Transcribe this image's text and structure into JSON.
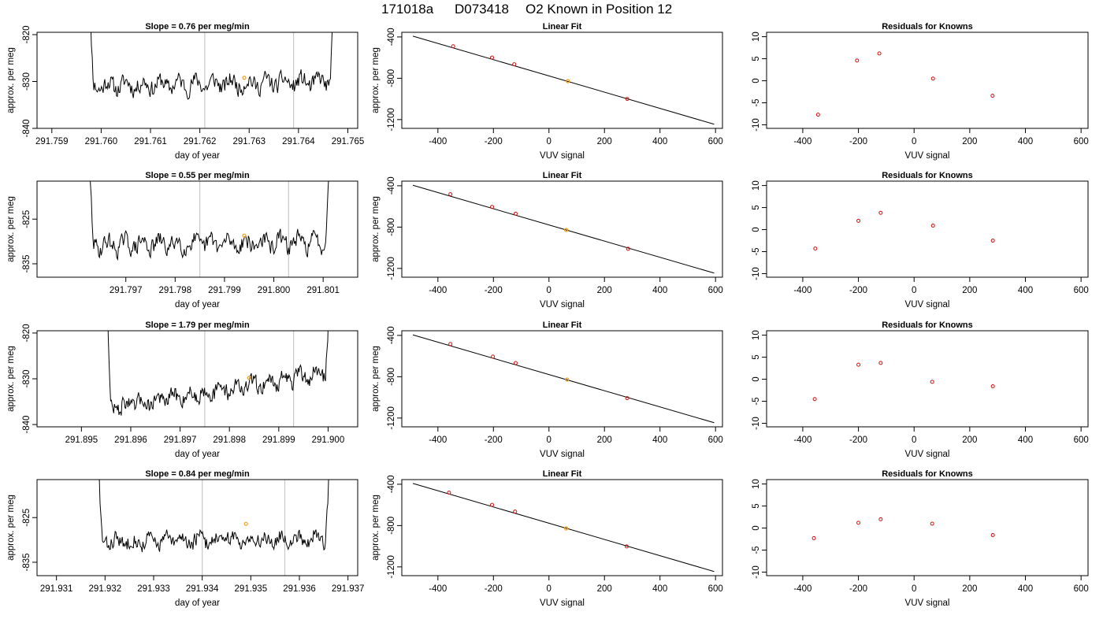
{
  "page": {
    "title_run": "171018a",
    "title_id": "D073418",
    "title_desc": "O2 Known in Position  12"
  },
  "colors": {
    "line": "#000000",
    "marker": "#d01010",
    "highlight": "#f0a020",
    "vline": "#c8c8c8"
  },
  "chart_data": [
    {
      "type": "line",
      "row": 0,
      "col": 0,
      "title": "Slope =  0.76  per meg/min",
      "xlabel": "day of year",
      "ylabel": "approx. per meg",
      "xlim": [
        291.7587,
        291.7652
      ],
      "ylim": [
        -840,
        -819.5
      ],
      "xticks": [
        291.759,
        291.76,
        291.761,
        291.762,
        291.763,
        291.764,
        291.765
      ],
      "xtick_labels": [
        "291.759",
        "291.760",
        "291.761",
        "291.762",
        "291.763",
        "291.764",
        "291.765"
      ],
      "yticks": [
        -840,
        -830,
        -820
      ],
      "ytick_labels": [
        "-840",
        "-830",
        "-820"
      ],
      "vlines": [
        291.7621,
        291.7639
      ],
      "series": {
        "t0": 291.7597,
        "t1": 291.7648,
        "base": -830.5,
        "noise": 1.6,
        "trend": 0.8,
        "edgeStart": 0.03,
        "edgeEnd": 0.035,
        "seed": 11
      },
      "marker": {
        "x": 291.7629,
        "y": -829.2
      }
    },
    {
      "type": "scatter",
      "row": 0,
      "col": 1,
      "title": "Linear Fit",
      "xlabel": "VUV signal",
      "ylabel": "approx. per meg",
      "xlim": [
        -530,
        625
      ],
      "ylim": [
        -1285,
        -355
      ],
      "xticks": [
        -400,
        -200,
        0,
        200,
        400,
        600
      ],
      "xtick_labels": [
        "-400",
        "-200",
        "0",
        "200",
        "400",
        "600"
      ],
      "yticks": [
        -1200,
        -800,
        -400
      ],
      "ytick_labels": [
        "-1200",
        "-800",
        "-400"
      ],
      "points": [
        [
          -345,
          -490
        ],
        [
          -205,
          -600
        ],
        [
          -125,
          -665
        ],
        [
          282,
          -1000
        ]
      ],
      "highlight": [
        [
          68,
          -828
        ]
      ],
      "fit": [
        [
          -490,
          -392
        ],
        [
          595,
          -1245
        ]
      ]
    },
    {
      "type": "scatter",
      "row": 0,
      "col": 2,
      "title": "Residuals for Knowns",
      "xlabel": "VUV signal",
      "ylabel": "",
      "xlim": [
        -530,
        625
      ],
      "ylim": [
        -10.8,
        11
      ],
      "xticks": [
        -400,
        -200,
        0,
        200,
        400,
        600
      ],
      "xtick_labels": [
        "-400",
        "-200",
        "0",
        "200",
        "400",
        "600"
      ],
      "yticks": [
        -10,
        -5,
        0,
        5,
        10
      ],
      "ytick_labels": [
        "-10",
        "-5",
        "0",
        "5",
        "10"
      ],
      "points": [
        [
          -345,
          -7.7
        ],
        [
          -205,
          4.6
        ],
        [
          -125,
          6.2
        ],
        [
          68,
          0.5
        ],
        [
          282,
          -3.4
        ]
      ]
    },
    {
      "type": "line",
      "row": 1,
      "col": 0,
      "title": "Slope =  0.55  per meg/min",
      "xlabel": "day of year",
      "ylabel": "approx. per meg",
      "xlim": [
        291.7952,
        291.8017
      ],
      "ylim": [
        -838,
        -816.5
      ],
      "xticks": [
        291.797,
        291.798,
        291.799,
        291.8,
        291.801
      ],
      "xtick_labels": [
        "291.797",
        "291.798",
        "291.799",
        "291.800",
        "291.801"
      ],
      "yticks": [
        -835,
        -825
      ],
      "ytick_labels": [
        "-835",
        "-825"
      ],
      "vlines": [
        291.7985,
        291.8003
      ],
      "series": {
        "t0": 291.7962,
        "t1": 291.8012,
        "base": -830.5,
        "noise": 1.7,
        "trend": 0.7,
        "edgeStart": 0.03,
        "edgeEnd": 0.035,
        "seed": 29
      },
      "marker": {
        "x": 291.7994,
        "y": -828.7
      }
    },
    {
      "type": "scatter",
      "row": 1,
      "col": 1,
      "title": "Linear Fit",
      "xlabel": "VUV signal",
      "ylabel": "approx. per meg",
      "xlim": [
        -530,
        625
      ],
      "ylim": [
        -1285,
        -355
      ],
      "xticks": [
        -400,
        -200,
        0,
        200,
        400,
        600
      ],
      "xtick_labels": [
        "-400",
        "-200",
        "0",
        "200",
        "400",
        "600"
      ],
      "yticks": [
        -1200,
        -800,
        -400
      ],
      "ytick_labels": [
        "-1200",
        "-800",
        "-400"
      ],
      "points": [
        [
          -355,
          -482
        ],
        [
          -205,
          -605
        ],
        [
          -120,
          -670
        ],
        [
          285,
          -1010
        ]
      ],
      "highlight": [
        [
          62,
          -828
        ]
      ],
      "fit": [
        [
          -490,
          -395
        ],
        [
          595,
          -1245
        ]
      ]
    },
    {
      "type": "scatter",
      "row": 1,
      "col": 2,
      "title": "Residuals for Knowns",
      "xlabel": "VUV signal",
      "ylabel": "",
      "xlim": [
        -530,
        625
      ],
      "ylim": [
        -10.8,
        11
      ],
      "xticks": [
        -400,
        -200,
        0,
        200,
        400,
        600
      ],
      "xtick_labels": [
        "-400",
        "-200",
        "0",
        "200",
        "400",
        "600"
      ],
      "yticks": [
        -10,
        -5,
        0,
        5,
        10
      ],
      "ytick_labels": [
        "-10",
        "-5",
        "0",
        "5",
        "10"
      ],
      "points": [
        [
          -355,
          -4.3
        ],
        [
          -200,
          2.0
        ],
        [
          -120,
          3.8
        ],
        [
          68,
          0.9
        ],
        [
          283,
          -2.5
        ]
      ]
    },
    {
      "type": "line",
      "row": 2,
      "col": 0,
      "title": "Slope =  1.79  per meg/min",
      "xlabel": "day of year",
      "ylabel": "approx. per meg",
      "xlim": [
        291.8941,
        291.9006
      ],
      "ylim": [
        -840.5,
        -819.5
      ],
      "xticks": [
        291.895,
        291.896,
        291.897,
        291.898,
        291.899,
        291.9
      ],
      "xtick_labels": [
        "291.895",
        "291.896",
        "291.897",
        "291.898",
        "291.899",
        "291.900"
      ],
      "yticks": [
        -840,
        -830,
        -820
      ],
      "ytick_labels": [
        "-840",
        "-830",
        "-820"
      ],
      "vlines": [
        291.8975,
        291.8993
      ],
      "series": {
        "t0": 291.8955,
        "t1": 291.9001,
        "base": -832.5,
        "noise": 1.5,
        "trend": 8.0,
        "edgeStart": 0.02,
        "edgeEnd": 0.035,
        "seed": 47
      },
      "marker": {
        "x": 291.8984,
        "y": -829.8
      }
    },
    {
      "type": "scatter",
      "row": 2,
      "col": 1,
      "title": "Linear Fit",
      "xlabel": "VUV signal",
      "ylabel": "approx. per meg",
      "xlim": [
        -530,
        625
      ],
      "ylim": [
        -1285,
        -355
      ],
      "xticks": [
        -400,
        -200,
        0,
        200,
        400,
        600
      ],
      "xtick_labels": [
        "-400",
        "-200",
        "0",
        "200",
        "400",
        "600"
      ],
      "yticks": [
        -1200,
        -800,
        -400
      ],
      "ytick_labels": [
        "-1200",
        "-800",
        "-400"
      ],
      "points": [
        [
          -355,
          -484
        ],
        [
          -202,
          -606
        ],
        [
          -120,
          -668
        ],
        [
          282,
          -1008
        ]
      ],
      "highlight": [
        [
          65,
          -828
        ]
      ],
      "fit": [
        [
          -490,
          -395
        ],
        [
          595,
          -1245
        ]
      ]
    },
    {
      "type": "scatter",
      "row": 2,
      "col": 2,
      "title": "Residuals for Knowns",
      "xlabel": "VUV signal",
      "ylabel": "",
      "xlim": [
        -530,
        625
      ],
      "ylim": [
        -10.8,
        11
      ],
      "xticks": [
        -400,
        -200,
        0,
        200,
        400,
        600
      ],
      "xtick_labels": [
        "-400",
        "-200",
        "0",
        "200",
        "400",
        "600"
      ],
      "yticks": [
        -10,
        -5,
        0,
        5,
        10
      ],
      "ytick_labels": [
        "-10",
        "-5",
        "0",
        "5",
        "10"
      ],
      "points": [
        [
          -357,
          -4.5
        ],
        [
          -200,
          3.3
        ],
        [
          -120,
          3.7
        ],
        [
          65,
          -0.6
        ],
        [
          283,
          -1.6
        ]
      ]
    },
    {
      "type": "line",
      "row": 3,
      "col": 0,
      "title": "Slope =  0.84  per meg/min",
      "xlabel": "day of year",
      "ylabel": "approx. per meg",
      "xlim": [
        291.9306,
        291.9372
      ],
      "ylim": [
        -838,
        -816.5
      ],
      "xticks": [
        291.931,
        291.932,
        291.933,
        291.934,
        291.935,
        291.936,
        291.937
      ],
      "xtick_labels": [
        "291.931",
        "291.932",
        "291.933",
        "291.934",
        "291.935",
        "291.936",
        "291.937"
      ],
      "yticks": [
        -835,
        -825
      ],
      "ytick_labels": [
        "-835",
        "-825"
      ],
      "vlines": [
        291.934,
        291.9357
      ],
      "series": {
        "t0": 291.9318,
        "t1": 291.9367,
        "base": -830.0,
        "noise": 1.5,
        "trend": 1.0,
        "edgeStart": 0.03,
        "edgeEnd": 0.035,
        "seed": 83
      },
      "marker": {
        "x": 291.9349,
        "y": -826.4
      }
    },
    {
      "type": "scatter",
      "row": 3,
      "col": 1,
      "title": "Linear Fit",
      "xlabel": "VUV signal",
      "ylabel": "approx. per meg",
      "xlim": [
        -530,
        625
      ],
      "ylim": [
        -1285,
        -355
      ],
      "xticks": [
        -400,
        -200,
        0,
        200,
        400,
        600
      ],
      "xtick_labels": [
        "-400",
        "-200",
        "0",
        "200",
        "400",
        "600"
      ],
      "yticks": [
        -1200,
        -800,
        -400
      ],
      "ytick_labels": [
        "-1200",
        "-800",
        "-400"
      ],
      "points": [
        [
          -360,
          -482
        ],
        [
          -205,
          -600
        ],
        [
          -122,
          -665
        ],
        [
          280,
          -1002
        ]
      ],
      "highlight": [
        [
          62,
          -828
        ]
      ],
      "fit": [
        [
          -490,
          -392
        ],
        [
          595,
          -1245
        ]
      ]
    },
    {
      "type": "scatter",
      "row": 3,
      "col": 2,
      "title": "Residuals for Knowns",
      "xlabel": "VUV signal",
      "ylabel": "",
      "xlim": [
        -530,
        625
      ],
      "ylim": [
        -10.8,
        11
      ],
      "xticks": [
        -400,
        -200,
        0,
        200,
        400,
        600
      ],
      "xtick_labels": [
        "-400",
        "-200",
        "0",
        "200",
        "400",
        "600"
      ],
      "yticks": [
        -10,
        -5,
        0,
        5,
        10
      ],
      "ytick_labels": [
        "-10",
        "-5",
        "0",
        "5",
        "10"
      ],
      "points": [
        [
          -360,
          -2.3
        ],
        [
          -200,
          1.2
        ],
        [
          -120,
          2.0
        ],
        [
          65,
          1.0
        ],
        [
          283,
          -1.6
        ]
      ]
    }
  ]
}
